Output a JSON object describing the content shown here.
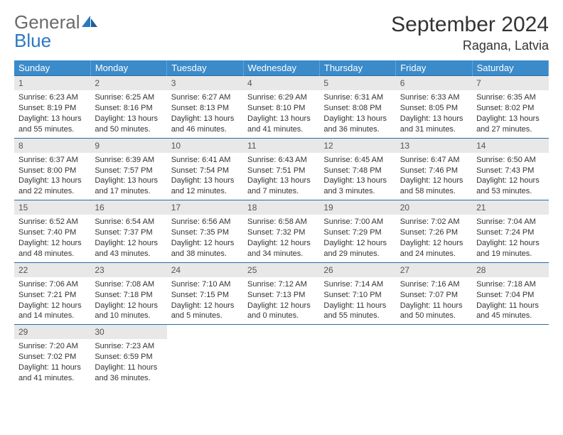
{
  "colors": {
    "header_blue": "#3b8bca",
    "rule_blue": "#2b6aa0",
    "daynum_bg": "#e8e8e8",
    "logo_gray": "#6a6a6a",
    "logo_blue": "#2b78c2",
    "text": "#333333",
    "background": "#ffffff"
  },
  "typography": {
    "title_fontsize": 30,
    "location_fontsize": 18,
    "dow_fontsize": 13,
    "cell_fontsize": 11,
    "logo_fontsize": 26
  },
  "logo": {
    "text1": "General",
    "text2": "Blue"
  },
  "title": "September 2024",
  "location": "Ragana, Latvia",
  "dows": [
    "Sunday",
    "Monday",
    "Tuesday",
    "Wednesday",
    "Thursday",
    "Friday",
    "Saturday"
  ],
  "weeks": [
    [
      {
        "n": "1",
        "sunrise": "Sunrise: 6:23 AM",
        "sunset": "Sunset: 8:19 PM",
        "daylight": "Daylight: 13 hours and 55 minutes."
      },
      {
        "n": "2",
        "sunrise": "Sunrise: 6:25 AM",
        "sunset": "Sunset: 8:16 PM",
        "daylight": "Daylight: 13 hours and 50 minutes."
      },
      {
        "n": "3",
        "sunrise": "Sunrise: 6:27 AM",
        "sunset": "Sunset: 8:13 PM",
        "daylight": "Daylight: 13 hours and 46 minutes."
      },
      {
        "n": "4",
        "sunrise": "Sunrise: 6:29 AM",
        "sunset": "Sunset: 8:10 PM",
        "daylight": "Daylight: 13 hours and 41 minutes."
      },
      {
        "n": "5",
        "sunrise": "Sunrise: 6:31 AM",
        "sunset": "Sunset: 8:08 PM",
        "daylight": "Daylight: 13 hours and 36 minutes."
      },
      {
        "n": "6",
        "sunrise": "Sunrise: 6:33 AM",
        "sunset": "Sunset: 8:05 PM",
        "daylight": "Daylight: 13 hours and 31 minutes."
      },
      {
        "n": "7",
        "sunrise": "Sunrise: 6:35 AM",
        "sunset": "Sunset: 8:02 PM",
        "daylight": "Daylight: 13 hours and 27 minutes."
      }
    ],
    [
      {
        "n": "8",
        "sunrise": "Sunrise: 6:37 AM",
        "sunset": "Sunset: 8:00 PM",
        "daylight": "Daylight: 13 hours and 22 minutes."
      },
      {
        "n": "9",
        "sunrise": "Sunrise: 6:39 AM",
        "sunset": "Sunset: 7:57 PM",
        "daylight": "Daylight: 13 hours and 17 minutes."
      },
      {
        "n": "10",
        "sunrise": "Sunrise: 6:41 AM",
        "sunset": "Sunset: 7:54 PM",
        "daylight": "Daylight: 13 hours and 12 minutes."
      },
      {
        "n": "11",
        "sunrise": "Sunrise: 6:43 AM",
        "sunset": "Sunset: 7:51 PM",
        "daylight": "Daylight: 13 hours and 7 minutes."
      },
      {
        "n": "12",
        "sunrise": "Sunrise: 6:45 AM",
        "sunset": "Sunset: 7:48 PM",
        "daylight": "Daylight: 13 hours and 3 minutes."
      },
      {
        "n": "13",
        "sunrise": "Sunrise: 6:47 AM",
        "sunset": "Sunset: 7:46 PM",
        "daylight": "Daylight: 12 hours and 58 minutes."
      },
      {
        "n": "14",
        "sunrise": "Sunrise: 6:50 AM",
        "sunset": "Sunset: 7:43 PM",
        "daylight": "Daylight: 12 hours and 53 minutes."
      }
    ],
    [
      {
        "n": "15",
        "sunrise": "Sunrise: 6:52 AM",
        "sunset": "Sunset: 7:40 PM",
        "daylight": "Daylight: 12 hours and 48 minutes."
      },
      {
        "n": "16",
        "sunrise": "Sunrise: 6:54 AM",
        "sunset": "Sunset: 7:37 PM",
        "daylight": "Daylight: 12 hours and 43 minutes."
      },
      {
        "n": "17",
        "sunrise": "Sunrise: 6:56 AM",
        "sunset": "Sunset: 7:35 PM",
        "daylight": "Daylight: 12 hours and 38 minutes."
      },
      {
        "n": "18",
        "sunrise": "Sunrise: 6:58 AM",
        "sunset": "Sunset: 7:32 PM",
        "daylight": "Daylight: 12 hours and 34 minutes."
      },
      {
        "n": "19",
        "sunrise": "Sunrise: 7:00 AM",
        "sunset": "Sunset: 7:29 PM",
        "daylight": "Daylight: 12 hours and 29 minutes."
      },
      {
        "n": "20",
        "sunrise": "Sunrise: 7:02 AM",
        "sunset": "Sunset: 7:26 PM",
        "daylight": "Daylight: 12 hours and 24 minutes."
      },
      {
        "n": "21",
        "sunrise": "Sunrise: 7:04 AM",
        "sunset": "Sunset: 7:24 PM",
        "daylight": "Daylight: 12 hours and 19 minutes."
      }
    ],
    [
      {
        "n": "22",
        "sunrise": "Sunrise: 7:06 AM",
        "sunset": "Sunset: 7:21 PM",
        "daylight": "Daylight: 12 hours and 14 minutes."
      },
      {
        "n": "23",
        "sunrise": "Sunrise: 7:08 AM",
        "sunset": "Sunset: 7:18 PM",
        "daylight": "Daylight: 12 hours and 10 minutes."
      },
      {
        "n": "24",
        "sunrise": "Sunrise: 7:10 AM",
        "sunset": "Sunset: 7:15 PM",
        "daylight": "Daylight: 12 hours and 5 minutes."
      },
      {
        "n": "25",
        "sunrise": "Sunrise: 7:12 AM",
        "sunset": "Sunset: 7:13 PM",
        "daylight": "Daylight: 12 hours and 0 minutes."
      },
      {
        "n": "26",
        "sunrise": "Sunrise: 7:14 AM",
        "sunset": "Sunset: 7:10 PM",
        "daylight": "Daylight: 11 hours and 55 minutes."
      },
      {
        "n": "27",
        "sunrise": "Sunrise: 7:16 AM",
        "sunset": "Sunset: 7:07 PM",
        "daylight": "Daylight: 11 hours and 50 minutes."
      },
      {
        "n": "28",
        "sunrise": "Sunrise: 7:18 AM",
        "sunset": "Sunset: 7:04 PM",
        "daylight": "Daylight: 11 hours and 45 minutes."
      }
    ],
    [
      {
        "n": "29",
        "sunrise": "Sunrise: 7:20 AM",
        "sunset": "Sunset: 7:02 PM",
        "daylight": "Daylight: 11 hours and 41 minutes."
      },
      {
        "n": "30",
        "sunrise": "Sunrise: 7:23 AM",
        "sunset": "Sunset: 6:59 PM",
        "daylight": "Daylight: 11 hours and 36 minutes."
      },
      null,
      null,
      null,
      null,
      null
    ]
  ]
}
